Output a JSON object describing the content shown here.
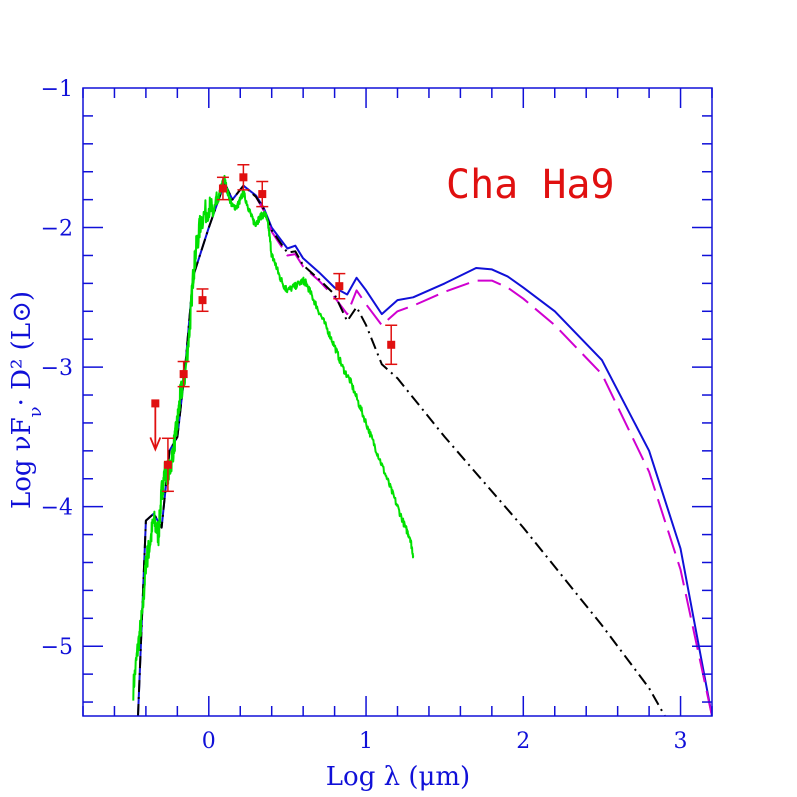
{
  "chart_data": {
    "type": "line",
    "title": "",
    "annotation": "Cha Ha9",
    "xlabel": "Log λ (μm)",
    "ylabel": "Log νF_ν· D² (L⊙)",
    "xlim": [
      -0.8,
      3.2
    ],
    "ylim": [
      -5.5,
      -1.0
    ],
    "x_ticks": [
      0,
      1,
      2,
      3
    ],
    "y_ticks": [
      -5,
      -4,
      -3,
      -2,
      -1
    ],
    "grid": false,
    "colors": {
      "axes": "#1010d8",
      "annotation": "#e01010",
      "data_points": "#e01010",
      "spectrum": "#00e000",
      "model_total": "#1010d8",
      "model_dashed": "#d000d0",
      "model_photosphere": "#000000"
    },
    "photometry": [
      {
        "x": -0.34,
        "y": -3.26,
        "upper_limit": true
      },
      {
        "x": -0.26,
        "y": -3.7,
        "err": 0.19
      },
      {
        "x": -0.16,
        "y": -3.05,
        "err": 0.09
      },
      {
        "x": -0.04,
        "y": -2.52,
        "err": 0.08
      },
      {
        "x": 0.09,
        "y": -1.72,
        "err": 0.08
      },
      {
        "x": 0.22,
        "y": -1.64,
        "err": 0.09
      },
      {
        "x": 0.34,
        "y": -1.76,
        "err": 0.09
      },
      {
        "x": 0.83,
        "y": -2.42,
        "err": 0.09
      },
      {
        "x": 1.16,
        "y": -2.84,
        "err": 0.14
      }
    ],
    "series": [
      {
        "style": "solid",
        "color": "#1010d8",
        "x": [
          -0.45,
          -0.4,
          -0.35,
          -0.3,
          -0.25,
          -0.2,
          -0.15,
          -0.1,
          0.0,
          0.1,
          0.15,
          0.22,
          0.3,
          0.35,
          0.4,
          0.5,
          0.55,
          0.6,
          0.7,
          0.8,
          0.88,
          0.94,
          1.0,
          1.1,
          1.2,
          1.3,
          1.5,
          1.7,
          1.8,
          1.9,
          2.0,
          2.2,
          2.5,
          2.8,
          3.0,
          3.2
        ],
        "y": [
          -5.5,
          -4.1,
          -4.05,
          -4.15,
          -3.6,
          -3.5,
          -3.0,
          -2.35,
          -2.0,
          -1.68,
          -1.8,
          -1.7,
          -1.77,
          -1.86,
          -2.0,
          -2.15,
          -2.13,
          -2.22,
          -2.32,
          -2.43,
          -2.48,
          -2.36,
          -2.45,
          -2.62,
          -2.52,
          -2.5,
          -2.4,
          -2.29,
          -2.3,
          -2.35,
          -2.43,
          -2.6,
          -2.95,
          -3.6,
          -4.3,
          -5.5
        ]
      },
      {
        "style": "dashed",
        "color": "#d000d0",
        "x": [
          0.3,
          0.35,
          0.4,
          0.5,
          0.55,
          0.6,
          0.7,
          0.8,
          0.88,
          0.94,
          1.0,
          1.1,
          1.2,
          1.3,
          1.5,
          1.7,
          1.8,
          1.9,
          2.0,
          2.2,
          2.5,
          2.8,
          3.0,
          3.2
        ],
        "y": [
          -1.78,
          -1.88,
          -2.03,
          -2.2,
          -2.19,
          -2.28,
          -2.38,
          -2.5,
          -2.62,
          -2.45,
          -2.55,
          -2.7,
          -2.6,
          -2.56,
          -2.46,
          -2.38,
          -2.38,
          -2.43,
          -2.51,
          -2.7,
          -3.05,
          -3.75,
          -4.45,
          -5.5
        ]
      },
      {
        "style": "dash-dot",
        "color": "#000000",
        "x": [
          -0.45,
          -0.4,
          -0.35,
          -0.3,
          -0.25,
          -0.2,
          -0.15,
          -0.1,
          0.0,
          0.1,
          0.15,
          0.22,
          0.3,
          0.35,
          0.4,
          0.5,
          0.55,
          0.6,
          0.7,
          0.8,
          0.88,
          0.94,
          1.0,
          1.1,
          1.2,
          1.5,
          2.0,
          2.5,
          2.8,
          2.9
        ],
        "y": [
          -5.5,
          -4.1,
          -4.05,
          -4.15,
          -3.6,
          -3.5,
          -3.0,
          -2.35,
          -2.0,
          -1.68,
          -1.8,
          -1.7,
          -1.78,
          -1.87,
          -2.02,
          -2.18,
          -2.17,
          -2.27,
          -2.37,
          -2.48,
          -2.67,
          -2.57,
          -2.7,
          -2.98,
          -3.08,
          -3.5,
          -4.15,
          -4.85,
          -5.3,
          -5.5
        ]
      },
      {
        "style": "noisy spectrum",
        "color": "#00e000",
        "x": [
          -0.48,
          -0.45,
          -0.42,
          -0.4,
          -0.38,
          -0.35,
          -0.32,
          -0.3,
          -0.28,
          -0.25,
          -0.22,
          -0.2,
          -0.18,
          -0.15,
          -0.12,
          -0.1,
          -0.08,
          -0.05,
          0.0,
          0.03,
          0.06,
          0.08,
          0.1,
          0.12,
          0.15,
          0.18,
          0.2,
          0.22,
          0.25,
          0.28,
          0.3,
          0.33,
          0.36,
          0.38,
          0.4,
          0.42,
          0.45,
          0.48,
          0.5,
          0.55,
          0.6,
          0.62,
          0.66,
          0.7,
          0.75,
          0.8,
          0.85,
          0.9,
          0.95,
          1.0,
          1.05,
          1.1,
          1.15,
          1.2,
          1.25,
          1.28,
          1.3
        ],
        "y": [
          -5.3,
          -5.0,
          -4.75,
          -4.4,
          -4.3,
          -4.1,
          -4.2,
          -3.9,
          -3.75,
          -3.75,
          -3.55,
          -3.4,
          -3.2,
          -3.05,
          -2.7,
          -2.35,
          -2.15,
          -1.95,
          -1.85,
          -1.9,
          -1.8,
          -1.7,
          -1.65,
          -1.75,
          -1.85,
          -1.85,
          -1.8,
          -1.75,
          -1.85,
          -1.95,
          -1.97,
          -1.92,
          -1.9,
          -2.0,
          -2.2,
          -2.25,
          -2.35,
          -2.42,
          -2.45,
          -2.42,
          -2.38,
          -2.4,
          -2.5,
          -2.6,
          -2.72,
          -2.85,
          -3.0,
          -3.1,
          -3.25,
          -3.4,
          -3.55,
          -3.7,
          -3.85,
          -4.0,
          -4.15,
          -4.22,
          -4.35
        ]
      }
    ]
  }
}
